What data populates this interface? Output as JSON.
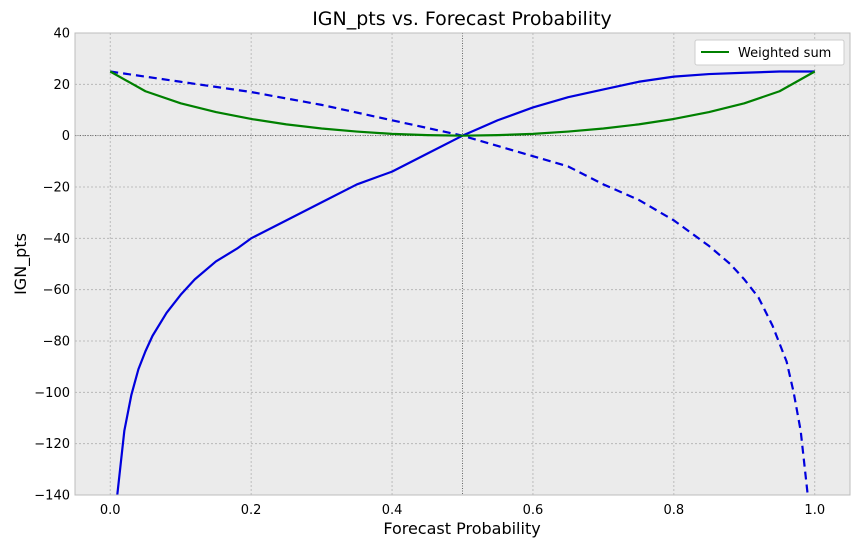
{
  "chart_data": {
    "type": "line",
    "title": "IGN_pts vs. Forecast Probability",
    "xlabel": "Forecast Probability",
    "ylabel": "IGN_pts",
    "xlim": [
      -0.05,
      1.05
    ],
    "ylim": [
      -140,
      40
    ],
    "xticks": [
      0.0,
      0.2,
      0.4,
      0.6,
      0.8,
      1.0
    ],
    "xtick_labels": [
      "0.0",
      "0.2",
      "0.4",
      "0.6",
      "0.8",
      "1.0"
    ],
    "yticks": [
      40,
      20,
      0,
      -20,
      -40,
      -60,
      -80,
      -100,
      -120,
      -140
    ],
    "ytick_labels": [
      "40",
      "20",
      "0",
      "−20",
      "−40",
      "−60",
      "−80",
      "−100",
      "−120",
      "−140"
    ],
    "grid": true,
    "reference_lines": {
      "x": 0.5,
      "y": 0
    },
    "legend_position": "top-right",
    "colors": {
      "background": "#ebebeb",
      "grid": "#b0b0b0",
      "blue": "#0000dd",
      "green": "#008000"
    },
    "series": [
      {
        "style": "solid",
        "color": "#0000dd",
        "x": [
          0.01,
          0.02,
          0.03,
          0.04,
          0.05,
          0.06,
          0.08,
          0.1,
          0.12,
          0.15,
          0.18,
          0.2,
          0.25,
          0.3,
          0.35,
          0.4,
          0.45,
          0.5,
          0.55,
          0.6,
          0.65,
          0.7,
          0.75,
          0.8,
          0.85,
          0.9,
          0.95,
          1.0
        ],
        "y": [
          -140,
          -115,
          -101,
          -91,
          -84,
          -78,
          -69,
          -62,
          -56,
          -49,
          -44,
          -40,
          -33,
          -26,
          -19,
          -14,
          -7,
          0,
          6,
          11,
          15,
          18,
          21,
          23,
          24,
          24.5,
          25,
          25
        ]
      },
      {
        "style": "dashed",
        "color": "#0000dd",
        "x": [
          0.0,
          0.1,
          0.2,
          0.3,
          0.4,
          0.5,
          0.55,
          0.6,
          0.65,
          0.7,
          0.75,
          0.8,
          0.85,
          0.88,
          0.9,
          0.92,
          0.94,
          0.96,
          0.97,
          0.98,
          0.99
        ],
        "y": [
          25,
          21,
          17,
          12,
          6,
          0,
          -4,
          -8,
          -12,
          -19,
          -25,
          -33,
          -43,
          -50,
          -56,
          -63,
          -74,
          -88,
          -100,
          -115,
          -140
        ]
      },
      {
        "name": "Weighted sum",
        "style": "solid",
        "color": "#008000",
        "x": [
          0.0,
          0.05,
          0.1,
          0.15,
          0.2,
          0.25,
          0.3,
          0.35,
          0.4,
          0.45,
          0.5,
          0.55,
          0.6,
          0.65,
          0.7,
          0.75,
          0.8,
          0.85,
          0.9,
          0.95,
          1.0
        ],
        "y": [
          25,
          17.3,
          12.6,
          9.2,
          6.5,
          4.4,
          2.8,
          1.6,
          0.7,
          0.2,
          0,
          0.2,
          0.7,
          1.6,
          2.8,
          4.4,
          6.5,
          9.2,
          12.6,
          17.3,
          25
        ]
      }
    ]
  }
}
